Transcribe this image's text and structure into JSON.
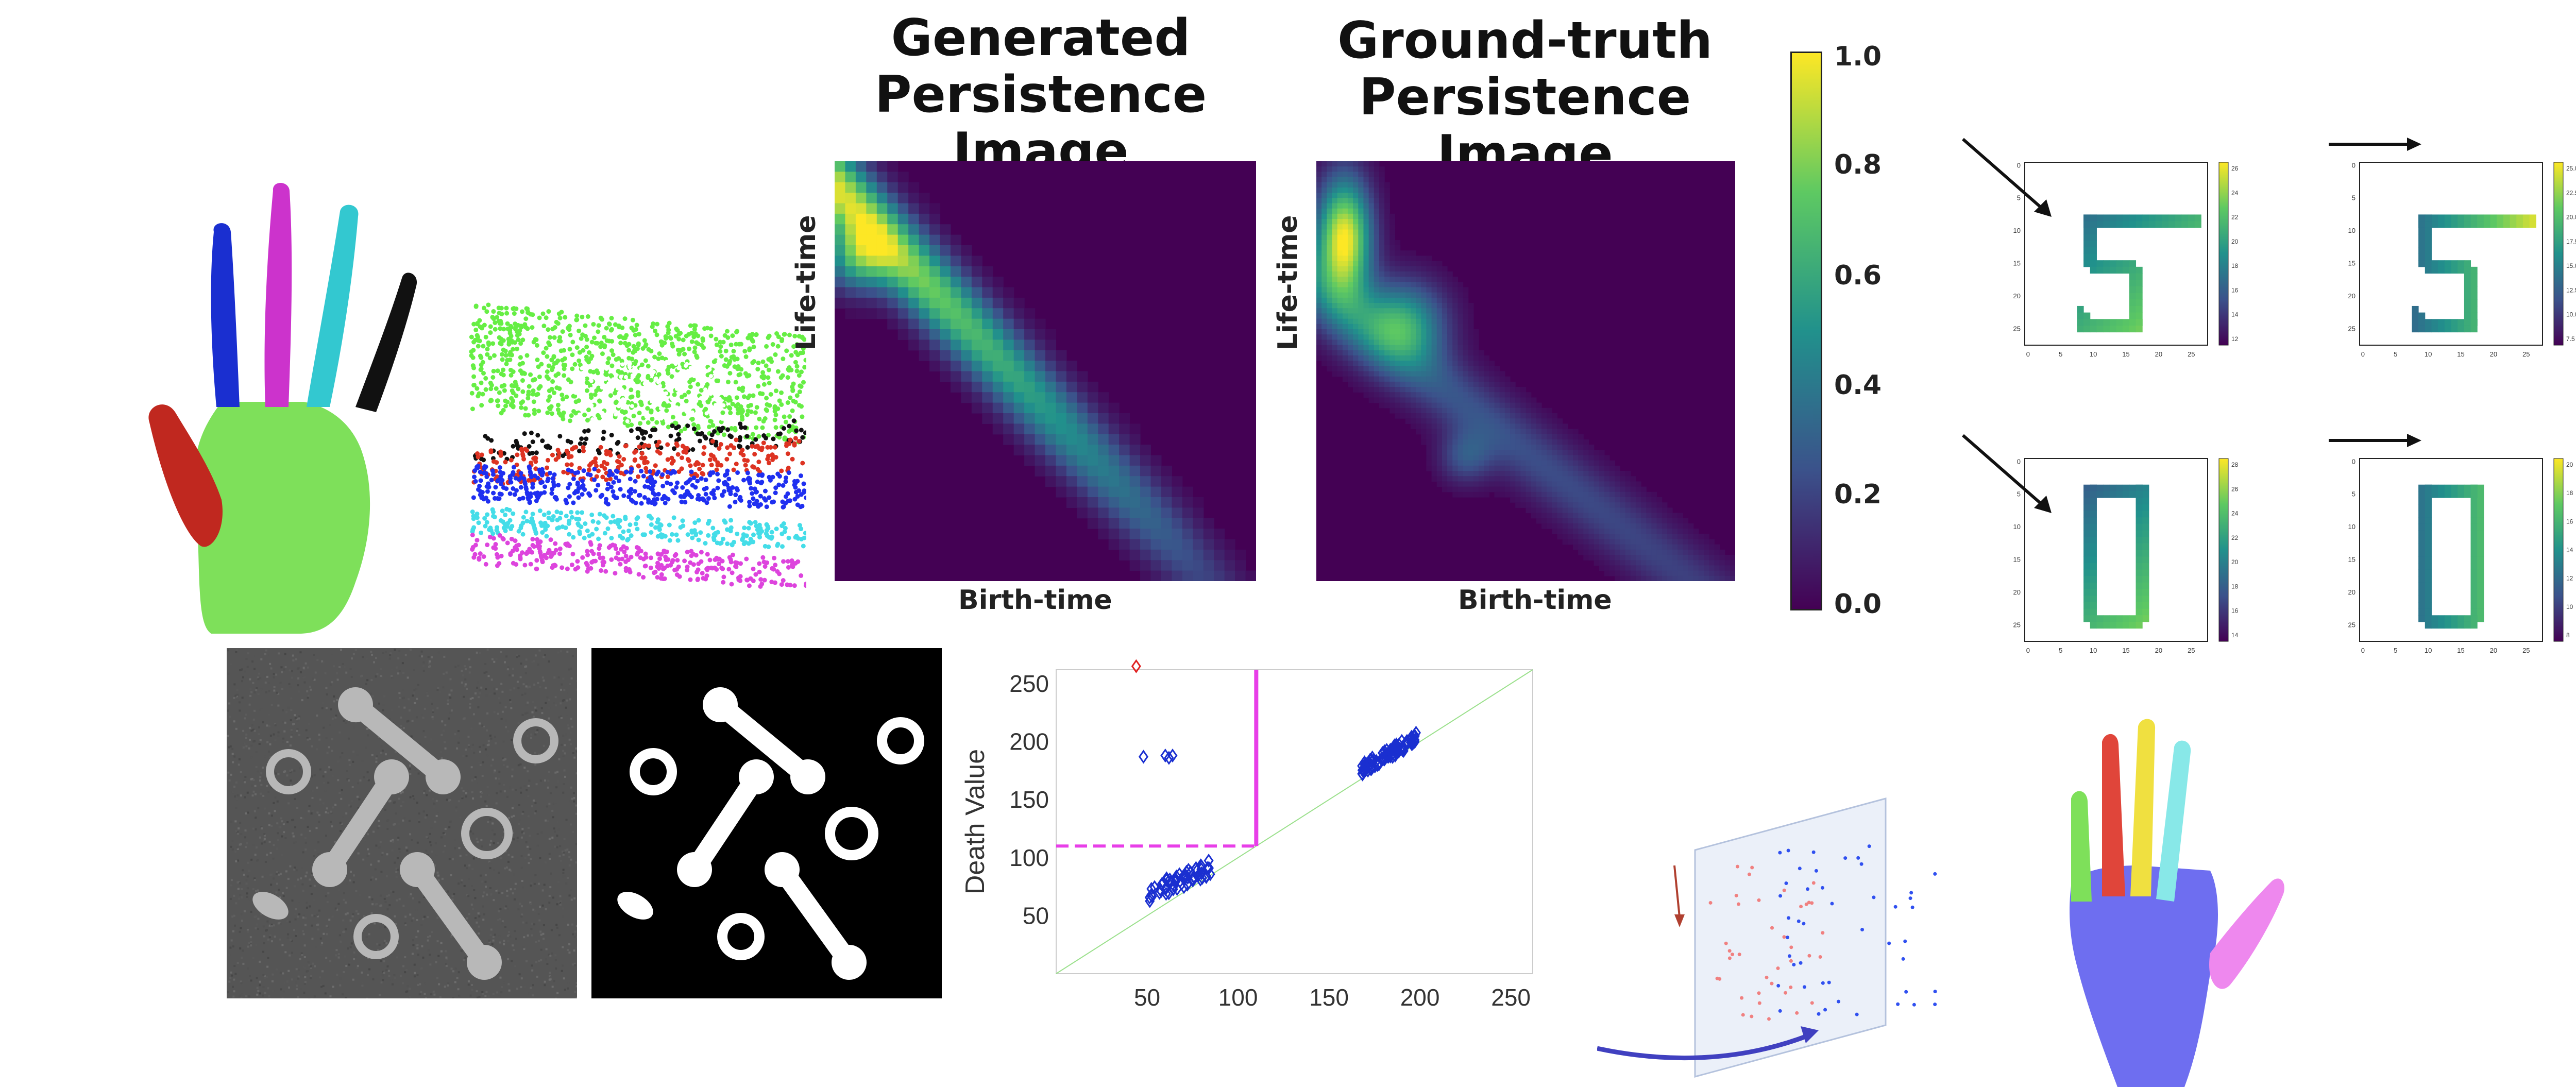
{
  "generated_panel": {
    "title_line1": "Generated",
    "title_line2": "Persistence Image",
    "xlabel": "Birth-time",
    "ylabel": "Life-time"
  },
  "groundtruth_panel": {
    "title_line1": "Ground-truth",
    "title_line2": "Persistence Image",
    "xlabel": "Birth-time",
    "ylabel": "Life-time"
  },
  "colorbar": {
    "ticks": [
      "1.0",
      "0.8",
      "0.6",
      "0.4",
      "0.2",
      "0.0"
    ],
    "colors": [
      "#440154",
      "#3b528b",
      "#21918c",
      "#5ec962",
      "#fde725"
    ]
  },
  "persistence_diagram": {
    "ylabel": "Death Value",
    "x_ticks": [
      "50",
      "100",
      "150",
      "200",
      "250"
    ],
    "y_ticks": [
      "250",
      "200",
      "150",
      "100",
      "50"
    ]
  },
  "digit_panels": {
    "x_ticks": [
      "0",
      "5",
      "10",
      "15",
      "20",
      "25"
    ],
    "y_ticks": [
      "0",
      "5",
      "10",
      "15",
      "20",
      "25"
    ],
    "cb_5_left": [
      "26",
      "24",
      "22",
      "20",
      "18",
      "16",
      "14",
      "12"
    ],
    "cb_5_right": [
      "25.0",
      "22.5",
      "20.0",
      "17.5",
      "15.0",
      "12.5",
      "10.0",
      "7.5"
    ],
    "cb_0_left": [
      "28",
      "26",
      "24",
      "22",
      "20",
      "18",
      "16",
      "14"
    ],
    "cb_0_right": [
      "20",
      "18",
      "16",
      "14",
      "12",
      "10",
      "8"
    ]
  },
  "segment_colors": {
    "palm": "#7ee05a",
    "thumb": "#c0281f",
    "index": "#1a2fd0",
    "middle": "#cc33cc",
    "ring": "#33c8d0",
    "pinky": "#111111"
  }
}
